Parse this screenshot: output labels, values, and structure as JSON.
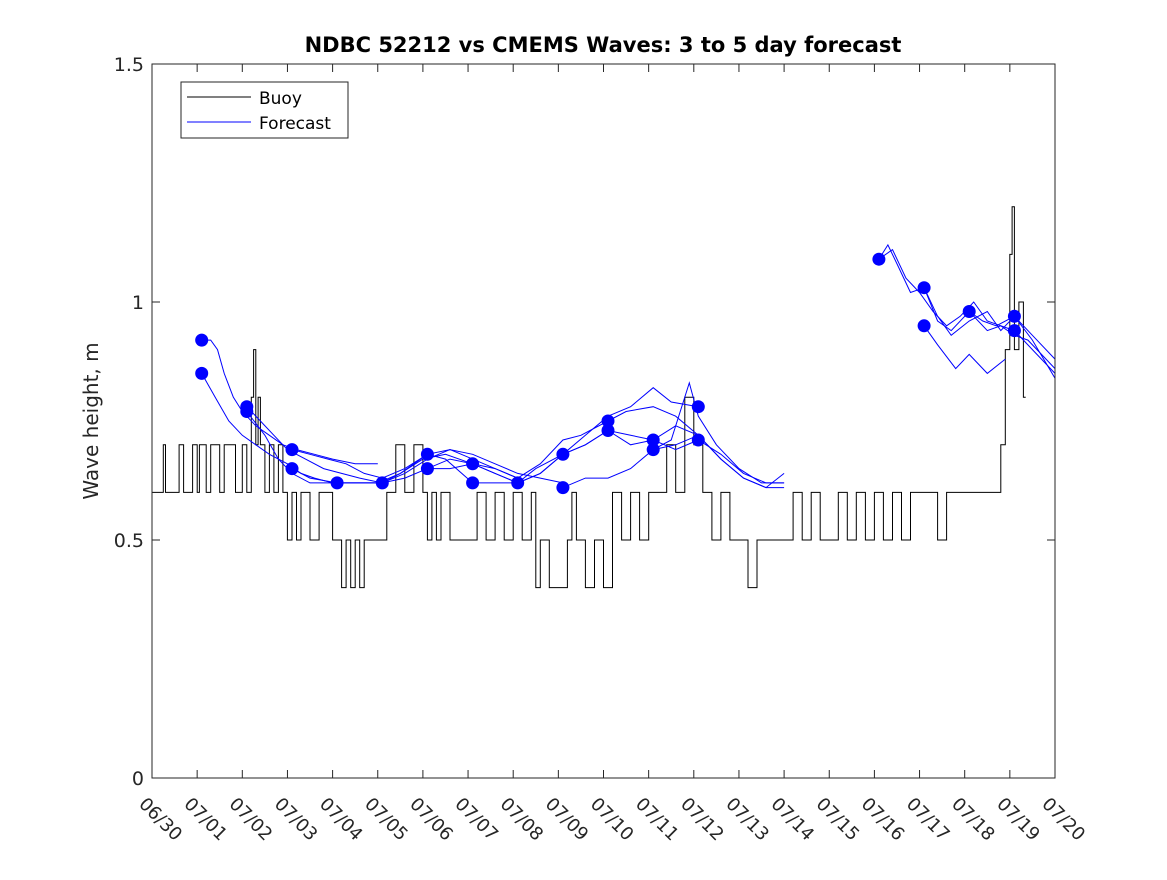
{
  "chart_data": {
    "type": "line",
    "title": "NDBC 52212 vs CMEMS Waves: 3 to 5 day forecast",
    "xlabel": "",
    "ylabel": "Wave height, m",
    "xlim": [
      "06/30",
      "07/20"
    ],
    "ylim": [
      0,
      1.5
    ],
    "xticks": [
      "06/30",
      "07/01",
      "07/02",
      "07/03",
      "07/04",
      "07/05",
      "07/06",
      "07/07",
      "07/08",
      "07/09",
      "07/10",
      "07/11",
      "07/12",
      "07/13",
      "07/14",
      "07/15",
      "07/16",
      "07/17",
      "07/18",
      "07/19",
      "07/20"
    ],
    "yticks": [
      0,
      0.5,
      1,
      1.5
    ],
    "ytick_labels": [
      "0",
      "0.5",
      "1",
      "1.5"
    ],
    "grid": false,
    "legend": {
      "placement": "top-left",
      "entries": [
        "Buoy",
        "Forecast"
      ]
    },
    "colors": {
      "buoy": "#000000",
      "forecast": "#0000ff",
      "markers": "#0000ff",
      "axes": "#262626"
    },
    "series": [
      {
        "name": "Buoy",
        "x_unit": "days since 06/30",
        "x": [
          0.0,
          0.25,
          0.3,
          0.6,
          0.7,
          0.9,
          1.0,
          1.05,
          1.2,
          1.3,
          1.5,
          1.6,
          1.85,
          2.0,
          2.1,
          2.2,
          2.25,
          2.3,
          2.35,
          2.4,
          2.5,
          2.6,
          2.7,
          2.8,
          2.9,
          3.0,
          3.1,
          3.2,
          3.3,
          3.5,
          3.7,
          4.0,
          4.2,
          4.3,
          4.4,
          4.5,
          4.6,
          4.7,
          5.0,
          5.2,
          5.4,
          5.6,
          5.8,
          6.0,
          6.1,
          6.2,
          6.3,
          6.4,
          6.6,
          7.0,
          7.2,
          7.4,
          7.6,
          7.8,
          8.0,
          8.2,
          8.4,
          8.5,
          8.6,
          8.8,
          9.0,
          9.2,
          9.3,
          9.4,
          9.6,
          9.8,
          10.0,
          10.2,
          10.4,
          10.6,
          10.8,
          11.0,
          11.2,
          11.4,
          11.6,
          11.8,
          12.0,
          12.2,
          12.4,
          12.6,
          12.8,
          13.0,
          13.2,
          13.4,
          13.6,
          13.8,
          14.0,
          14.2,
          14.4,
          14.6,
          14.8,
          15.0,
          15.2,
          15.4,
          15.6,
          15.8,
          16.0,
          16.2,
          16.4,
          16.6,
          16.8,
          17.0,
          17.2,
          17.4,
          17.6,
          17.8,
          18.0,
          18.2,
          18.4,
          18.6,
          18.8,
          18.9,
          19.0,
          19.05,
          19.1,
          19.2,
          19.3
        ],
        "y": [
          0.6,
          0.7,
          0.6,
          0.7,
          0.6,
          0.7,
          0.6,
          0.7,
          0.6,
          0.7,
          0.6,
          0.7,
          0.6,
          0.7,
          0.6,
          0.8,
          0.9,
          0.7,
          0.8,
          0.7,
          0.6,
          0.7,
          0.6,
          0.7,
          0.6,
          0.5,
          0.6,
          0.5,
          0.6,
          0.5,
          0.6,
          0.5,
          0.4,
          0.5,
          0.4,
          0.5,
          0.4,
          0.5,
          0.5,
          0.6,
          0.7,
          0.6,
          0.7,
          0.6,
          0.5,
          0.6,
          0.5,
          0.6,
          0.5,
          0.5,
          0.6,
          0.5,
          0.6,
          0.5,
          0.6,
          0.5,
          0.6,
          0.4,
          0.5,
          0.4,
          0.4,
          0.5,
          0.6,
          0.5,
          0.4,
          0.5,
          0.4,
          0.6,
          0.5,
          0.6,
          0.5,
          0.6,
          0.6,
          0.7,
          0.6,
          0.8,
          0.7,
          0.6,
          0.5,
          0.6,
          0.5,
          0.5,
          0.4,
          0.5,
          0.5,
          0.5,
          0.5,
          0.6,
          0.5,
          0.6,
          0.5,
          0.5,
          0.6,
          0.5,
          0.6,
          0.5,
          0.6,
          0.5,
          0.6,
          0.5,
          0.6,
          0.6,
          0.6,
          0.5,
          0.6,
          0.6,
          0.6,
          0.6,
          0.6,
          0.6,
          0.7,
          0.9,
          1.1,
          1.2,
          0.9,
          1.0,
          0.8
        ]
      },
      {
        "name": "Forecast",
        "segments": [
          {
            "x": [
              1.1,
              1.3,
              1.45,
              1.6,
              1.8,
              2.0,
              2.3,
              2.6,
              2.9,
              3.2,
              3.6,
              4.0,
              4.5,
              5.0
            ],
            "y": [
              0.92,
              0.92,
              0.9,
              0.85,
              0.8,
              0.77,
              0.74,
              0.72,
              0.7,
              0.69,
              0.68,
              0.67,
              0.66,
              0.66
            ]
          },
          {
            "x": [
              1.1,
              1.4,
              1.7,
              2.0,
              2.3,
              2.6,
              3.0,
              3.3,
              3.6,
              4.0,
              4.5,
              5.0,
              5.5,
              6.1
            ],
            "y": [
              0.85,
              0.8,
              0.75,
              0.72,
              0.7,
              0.68,
              0.66,
              0.64,
              0.63,
              0.62,
              0.62,
              0.62,
              0.64,
              0.68
            ]
          },
          {
            "x": [
              2.1,
              2.4,
              2.7,
              3.0,
              3.4,
              3.8,
              4.2,
              4.6,
              5.1,
              5.5,
              6.0,
              6.5,
              7.1
            ],
            "y": [
              0.78,
              0.75,
              0.72,
              0.69,
              0.67,
              0.65,
              0.64,
              0.63,
              0.62,
              0.64,
              0.67,
              0.68,
              0.66
            ]
          },
          {
            "x": [
              2.1,
              2.5,
              2.8,
              3.1,
              3.5,
              4.0,
              4.5,
              5.1,
              5.6,
              6.1,
              6.6,
              7.1,
              7.6,
              8.1
            ],
            "y": [
              0.77,
              0.72,
              0.67,
              0.64,
              0.62,
              0.62,
              0.62,
              0.62,
              0.64,
              0.67,
              0.69,
              0.67,
              0.65,
              0.63
            ]
          },
          {
            "x": [
              3.1,
              3.5,
              3.9,
              4.3,
              4.7,
              5.1,
              5.6,
              6.1,
              6.6,
              7.1,
              7.6,
              8.1,
              8.6,
              9.1
            ],
            "y": [
              0.69,
              0.68,
              0.67,
              0.66,
              0.64,
              0.63,
              0.65,
              0.68,
              0.69,
              0.68,
              0.66,
              0.64,
              0.63,
              0.62
            ]
          },
          {
            "x": [
              3.1,
              3.5,
              4.1,
              4.6,
              5.1,
              5.6,
              6.1,
              6.6,
              7.1,
              7.6,
              8.1,
              8.6,
              9.1,
              9.6,
              10.1
            ],
            "y": [
              0.65,
              0.63,
              0.62,
              0.62,
              0.62,
              0.63,
              0.65,
              0.67,
              0.66,
              0.64,
              0.62,
              0.64,
              0.68,
              0.7,
              0.73
            ]
          },
          {
            "x": [
              6.1,
              6.6,
              7.1,
              7.6,
              8.1,
              8.6,
              9.1,
              9.5,
              10.1,
              10.5,
              11.1,
              11.6,
              12.1
            ],
            "y": [
              0.65,
              0.65,
              0.66,
              0.65,
              0.63,
              0.66,
              0.71,
              0.72,
              0.75,
              0.77,
              0.78,
              0.76,
              0.72
            ]
          },
          {
            "x": [
              6.1,
              6.5,
              7.1,
              7.6,
              8.1,
              8.5,
              9.1,
              9.6,
              10.1,
              10.6,
              11.1,
              11.5,
              12.1
            ],
            "y": [
              0.68,
              0.67,
              0.62,
              0.62,
              0.62,
              0.65,
              0.68,
              0.72,
              0.76,
              0.78,
              0.82,
              0.79,
              0.78
            ]
          },
          {
            "x": [
              7.1,
              7.6,
              8.1,
              8.6,
              9.1,
              9.6,
              10.1,
              10.6,
              11.1,
              11.6,
              12.1,
              12.6,
              13.1,
              13.6,
              14.0
            ],
            "y": [
              0.66,
              0.64,
              0.62,
              0.64,
              0.68,
              0.7,
              0.73,
              0.72,
              0.71,
              0.69,
              0.71,
              0.68,
              0.64,
              0.62,
              0.62
            ]
          },
          {
            "x": [
              9.1,
              9.6,
              10.1,
              10.6,
              11.1,
              11.5,
              11.9,
              12.1,
              12.5,
              13.0,
              13.5,
              14.0
            ],
            "y": [
              0.61,
              0.63,
              0.63,
              0.65,
              0.69,
              0.71,
              0.83,
              0.76,
              0.7,
              0.65,
              0.62,
              0.62
            ]
          },
          {
            "x": [
              10.1,
              10.6,
              11.1,
              11.6,
              12.1,
              12.6,
              13.1,
              13.6,
              14.0
            ],
            "y": [
              0.73,
              0.7,
              0.71,
              0.74,
              0.72,
              0.67,
              0.63,
              0.61,
              0.61
            ]
          },
          {
            "x": [
              11.1,
              11.6,
              12.1,
              12.6,
              13.1,
              13.6,
              14.0
            ],
            "y": [
              0.69,
              0.7,
              0.72,
              0.67,
              0.63,
              0.61,
              0.64
            ]
          },
          {
            "x": [
              16.1,
              16.3,
              16.5,
              16.8,
              17.1,
              17.4,
              17.7,
              18.1,
              18.5,
              18.8,
              19.1,
              19.5,
              20.0
            ],
            "y": [
              1.09,
              1.12,
              1.08,
              1.02,
              1.03,
              0.97,
              0.93,
              0.96,
              0.98,
              0.94,
              0.97,
              0.93,
              0.88
            ]
          },
          {
            "x": [
              16.1,
              16.4,
              16.7,
              17.0,
              17.3,
              17.6,
              17.9,
              18.2,
              18.5,
              18.8,
              19.1,
              19.4,
              19.7,
              20.0
            ],
            "y": [
              1.09,
              1.11,
              1.05,
              1.02,
              0.98,
              0.95,
              0.97,
              1.0,
              0.96,
              0.95,
              0.93,
              0.92,
              0.89,
              0.86
            ]
          },
          {
            "x": [
              17.1,
              17.4,
              17.7,
              18.1,
              18.4,
              18.7,
              19.1,
              19.5,
              20.0
            ],
            "y": [
              1.03,
              0.96,
              0.94,
              0.98,
              0.96,
              0.95,
              0.97,
              0.92,
              0.84
            ]
          },
          {
            "x": [
              17.1,
              17.4,
              17.8,
              18.1,
              18.5,
              18.9
            ],
            "y": [
              0.95,
              0.91,
              0.86,
              0.89,
              0.85,
              0.88
            ]
          },
          {
            "x": [
              18.1,
              18.5,
              18.8,
              19.1,
              19.5,
              20.0
            ],
            "y": [
              0.98,
              0.94,
              0.95,
              0.94,
              0.9,
              0.85
            ]
          }
        ]
      }
    ],
    "markers": {
      "x": [
        1.1,
        1.1,
        2.1,
        2.1,
        3.1,
        3.1,
        4.1,
        5.1,
        6.1,
        6.1,
        7.1,
        7.1,
        8.1,
        9.1,
        9.1,
        10.1,
        10.1,
        11.1,
        11.1,
        12.1,
        12.1,
        16.1,
        17.1,
        17.1,
        18.1,
        19.1,
        19.1
      ],
      "y": [
        0.92,
        0.85,
        0.78,
        0.77,
        0.69,
        0.65,
        0.62,
        0.62,
        0.68,
        0.65,
        0.66,
        0.62,
        0.62,
        0.68,
        0.61,
        0.75,
        0.73,
        0.71,
        0.69,
        0.78,
        0.71,
        1.09,
        1.03,
        0.95,
        0.98,
        0.97,
        0.94
      ]
    }
  }
}
